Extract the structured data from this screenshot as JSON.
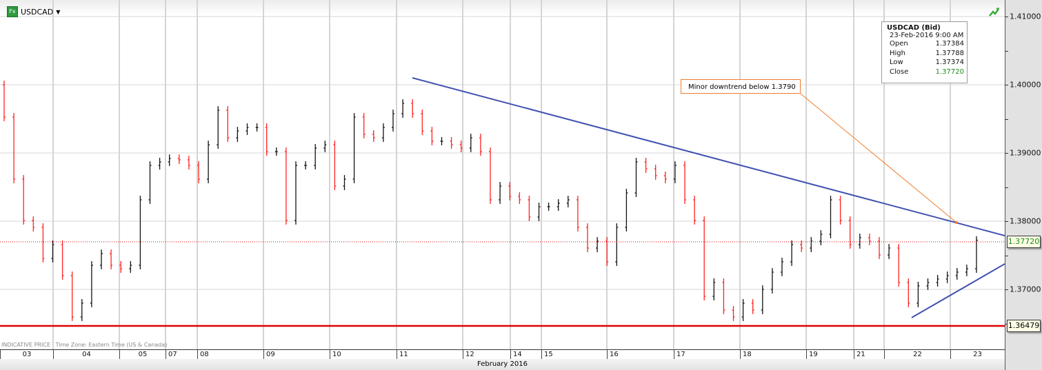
{
  "header": {
    "symbol": "USDCAD",
    "fx_badge": "Fx",
    "dropdown_icon": "caret-down-icon",
    "status_icon": "trend-up-icon"
  },
  "infobox": {
    "title": "USDCAD (Bid)",
    "datetime": "23-Feb-2016 9:00 AM",
    "rows": [
      {
        "label": "Open",
        "value": "1.37384"
      },
      {
        "label": "High",
        "value": "1.37788"
      },
      {
        "label": "Low",
        "value": "1.37374"
      },
      {
        "label": "Close",
        "value": "1.37720"
      }
    ]
  },
  "annotation": {
    "text": "Minor downtrend below 1.3790",
    "color": "#f07a2a"
  },
  "footnote": {
    "price_type": "INDICATIVE PRICE",
    "timezone": "Time Zone: Eastern Time (US & Canada)"
  },
  "colors": {
    "up": "#111111",
    "down": "#ff2020",
    "trendline": "#3f51b0",
    "support": "#e00000",
    "close_text": "#1a8a1a"
  },
  "chart_data": {
    "type": "ohlc",
    "ylim": [
      1.362,
      1.4125
    ],
    "y_ticks": [
      "1.41000",
      "1.40000",
      "1.39000",
      "1.38000",
      "1.37000"
    ],
    "y_tick_values": [
      1.41,
      1.4,
      1.39,
      1.38,
      1.37
    ],
    "x_tick_labels": [
      "03",
      "04",
      "05",
      "07",
      "08",
      "09",
      "10",
      "11",
      "12",
      "14",
      "15",
      "16",
      "17",
      "18",
      "19",
      "21",
      "22",
      "23"
    ],
    "x_month_label": "February 2016",
    "grid": true,
    "last_price": {
      "value": 1.3772,
      "label": "1.37720"
    },
    "support_line": {
      "value": 1.36479,
      "label": "1.36479"
    },
    "trendlines": [
      {
        "from": {
          "date": "11-Feb",
          "price": 1.401
        },
        "to": {
          "date": "23-Feb",
          "price": 1.3777
        }
      },
      {
        "from": {
          "date": "22-Feb",
          "price": 1.3652
        },
        "to": {
          "date": "23-Feb",
          "price": 1.3734
        }
      }
    ],
    "closes": [
      1.39525,
      1.38616,
      1.3801,
      1.37909,
      1.37455,
      1.37657,
      1.37202,
      1.36596,
      1.36798,
      1.37354,
      1.37525,
      1.37354,
      1.37303,
      1.37354,
      1.38313,
      1.38818,
      1.38869,
      1.38919,
      1.38899,
      1.38818,
      1.38616,
      1.39121,
      1.39626,
      1.39222,
      1.39323,
      1.39374,
      1.39374,
      1.3902,
      1.3902,
      1.3801,
      1.38818,
      1.38818,
      1.39071,
      1.39121,
      1.38515,
      1.38616,
      1.39525,
      1.39273,
      1.39222,
      1.39374,
      1.39576,
      1.39727,
      1.39576,
      1.39323,
      1.39172,
      1.39172,
      1.39121,
      1.39071,
      1.39222,
      1.3902,
      1.38313,
      1.38515,
      1.38364,
      1.38313,
      1.38061,
      1.38212,
      1.38212,
      1.38263,
      1.38313,
      1.37909,
      1.37606,
      1.37707,
      1.37404,
      1.37909,
      1.38414,
      1.38869,
      1.38768,
      1.38667,
      1.38616,
      1.38818,
      1.38313,
      1.3801,
      1.36899,
      1.37101,
      1.36697,
      1.36596,
      1.36798,
      1.36697,
      1.37,
      1.37253,
      1.37404,
      1.37657,
      1.37606,
      1.37707,
      1.37808,
      1.38313,
      1.3801,
      1.37657,
      1.37758,
      1.37707,
      1.37505,
      1.37606,
      1.37101,
      1.36798,
      1.37051,
      1.37101,
      1.37152,
      1.37202,
      1.37253,
      1.37303,
      1.3772
    ]
  }
}
